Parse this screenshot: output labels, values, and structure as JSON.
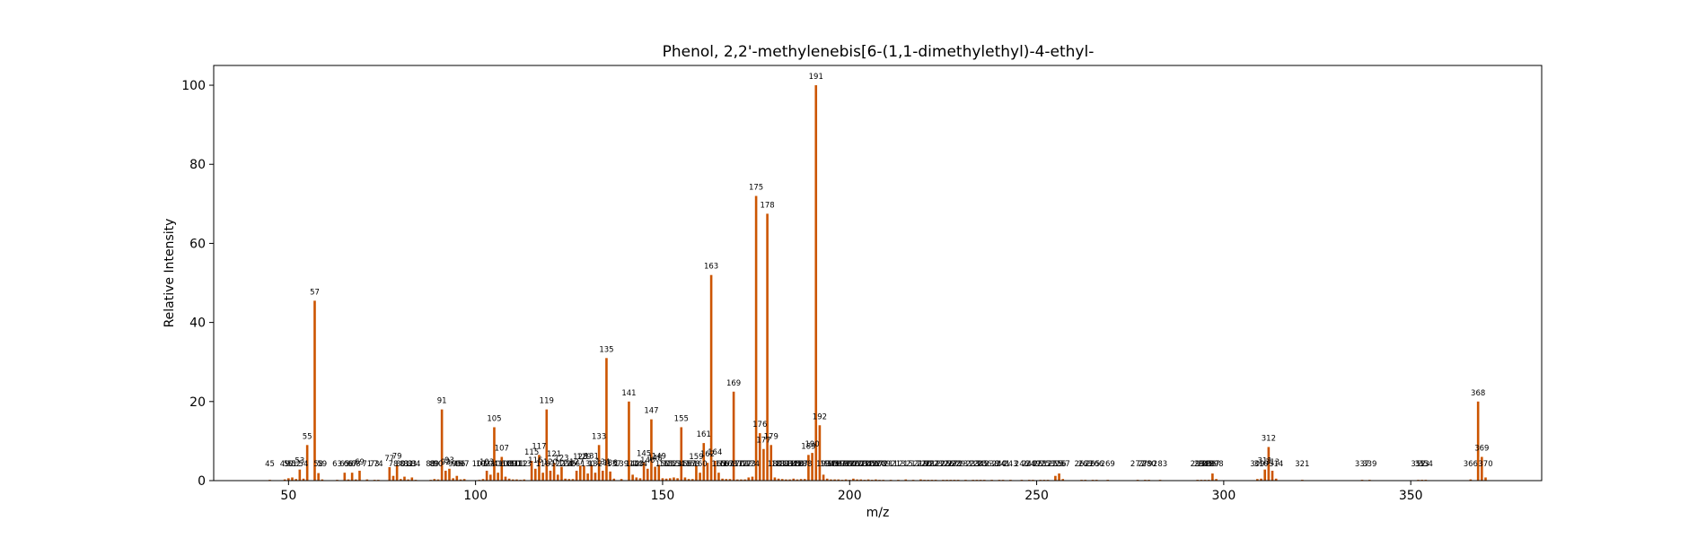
{
  "chart_data": {
    "type": "bar",
    "title": "Phenol, 2,2'-methylenebis[6-(1,1-dimethylethyl)-4-ethyl-",
    "xlabel": "m/z",
    "ylabel": "Relative Intensity",
    "xlim": [
      30,
      385
    ],
    "ylim": [
      0,
      105
    ],
    "xticks": [
      50,
      100,
      150,
      200,
      250,
      300,
      350
    ],
    "yticks": [
      0,
      20,
      40,
      60,
      80,
      100
    ],
    "grid": false,
    "bar_color": "#cc5500",
    "peaks": [
      {
        "x": 45,
        "y": 0.2
      },
      {
        "x": 49,
        "y": 0.3
      },
      {
        "x": 50,
        "y": 0.6
      },
      {
        "x": 51,
        "y": 0.8
      },
      {
        "x": 52,
        "y": 0.4
      },
      {
        "x": 53,
        "y": 2.8
      },
      {
        "x": 54,
        "y": 0.5
      },
      {
        "x": 55,
        "y": 9.0
      },
      {
        "x": 57,
        "y": 45.5
      },
      {
        "x": 58,
        "y": 1.9
      },
      {
        "x": 59,
        "y": 0.3
      },
      {
        "x": 63,
        "y": 0.2
      },
      {
        "x": 65,
        "y": 2.0
      },
      {
        "x": 66,
        "y": 0.3
      },
      {
        "x": 67,
        "y": 2.0
      },
      {
        "x": 68,
        "y": 0.3
      },
      {
        "x": 69,
        "y": 2.5
      },
      {
        "x": 71,
        "y": 0.3
      },
      {
        "x": 73,
        "y": 0.2
      },
      {
        "x": 74,
        "y": 0.2
      },
      {
        "x": 77,
        "y": 3.4
      },
      {
        "x": 78,
        "y": 1.2
      },
      {
        "x": 79,
        "y": 4.0
      },
      {
        "x": 80,
        "y": 0.4
      },
      {
        "x": 81,
        "y": 1.0
      },
      {
        "x": 82,
        "y": 0.3
      },
      {
        "x": 83,
        "y": 0.8
      },
      {
        "x": 84,
        "y": 0.2
      },
      {
        "x": 88,
        "y": 0.2
      },
      {
        "x": 89,
        "y": 0.4
      },
      {
        "x": 90,
        "y": 0.3
      },
      {
        "x": 91,
        "y": 18.0
      },
      {
        "x": 92,
        "y": 2.5
      },
      {
        "x": 93,
        "y": 3.0
      },
      {
        "x": 94,
        "y": 0.6
      },
      {
        "x": 95,
        "y": 1.2
      },
      {
        "x": 96,
        "y": 0.3
      },
      {
        "x": 97,
        "y": 0.4
      },
      {
        "x": 101,
        "y": 0.2
      },
      {
        "x": 102,
        "y": 0.4
      },
      {
        "x": 103,
        "y": 2.5
      },
      {
        "x": 104,
        "y": 1.5
      },
      {
        "x": 105,
        "y": 13.5
      },
      {
        "x": 106,
        "y": 2.0
      },
      {
        "x": 107,
        "y": 6.0
      },
      {
        "x": 108,
        "y": 1.0
      },
      {
        "x": 109,
        "y": 0.5
      },
      {
        "x": 110,
        "y": 0.3
      },
      {
        "x": 111,
        "y": 0.3
      },
      {
        "x": 112,
        "y": 0.2
      },
      {
        "x": 113,
        "y": 0.3
      },
      {
        "x": 115,
        "y": 5.0
      },
      {
        "x": 116,
        "y": 3.0
      },
      {
        "x": 117,
        "y": 6.5
      },
      {
        "x": 118,
        "y": 2.0
      },
      {
        "x": 119,
        "y": 18.0
      },
      {
        "x": 120,
        "y": 2.5
      },
      {
        "x": 121,
        "y": 4.5
      },
      {
        "x": 122,
        "y": 1.5
      },
      {
        "x": 123,
        "y": 3.5
      },
      {
        "x": 124,
        "y": 0.5
      },
      {
        "x": 125,
        "y": 0.4
      },
      {
        "x": 126,
        "y": 0.4
      },
      {
        "x": 127,
        "y": 2.5
      },
      {
        "x": 128,
        "y": 3.8
      },
      {
        "x": 129,
        "y": 3.8
      },
      {
        "x": 130,
        "y": 1.8
      },
      {
        "x": 131,
        "y": 4.0
      },
      {
        "x": 132,
        "y": 2.0
      },
      {
        "x": 133,
        "y": 9.0
      },
      {
        "x": 134,
        "y": 2.5
      },
      {
        "x": 135,
        "y": 31.0
      },
      {
        "x": 136,
        "y": 2.3
      },
      {
        "x": 137,
        "y": 0.5
      },
      {
        "x": 139,
        "y": 0.4
      },
      {
        "x": 141,
        "y": 20.0
      },
      {
        "x": 142,
        "y": 1.5
      },
      {
        "x": 143,
        "y": 0.8
      },
      {
        "x": 144,
        "y": 0.6
      },
      {
        "x": 145,
        "y": 4.6
      },
      {
        "x": 146,
        "y": 3.0
      },
      {
        "x": 147,
        "y": 15.5
      },
      {
        "x": 148,
        "y": 3.5
      },
      {
        "x": 149,
        "y": 4.0
      },
      {
        "x": 150,
        "y": 0.6
      },
      {
        "x": 151,
        "y": 0.5
      },
      {
        "x": 152,
        "y": 0.6
      },
      {
        "x": 153,
        "y": 0.8
      },
      {
        "x": 154,
        "y": 0.6
      },
      {
        "x": 155,
        "y": 13.5
      },
      {
        "x": 156,
        "y": 0.8
      },
      {
        "x": 157,
        "y": 0.4
      },
      {
        "x": 158,
        "y": 0.4
      },
      {
        "x": 159,
        "y": 3.8
      },
      {
        "x": 160,
        "y": 2.0
      },
      {
        "x": 161,
        "y": 9.5
      },
      {
        "x": 162,
        "y": 4.5
      },
      {
        "x": 163,
        "y": 52.0
      },
      {
        "x": 164,
        "y": 5.0
      },
      {
        "x": 165,
        "y": 2.0
      },
      {
        "x": 166,
        "y": 0.5
      },
      {
        "x": 167,
        "y": 0.4
      },
      {
        "x": 168,
        "y": 0.4
      },
      {
        "x": 169,
        "y": 22.5
      },
      {
        "x": 170,
        "y": 0.3
      },
      {
        "x": 171,
        "y": 0.3
      },
      {
        "x": 172,
        "y": 0.3
      },
      {
        "x": 173,
        "y": 0.8
      },
      {
        "x": 174,
        "y": 1.0
      },
      {
        "x": 175,
        "y": 72.0
      },
      {
        "x": 176,
        "y": 12.0
      },
      {
        "x": 177,
        "y": 8.0
      },
      {
        "x": 178,
        "y": 67.5
      },
      {
        "x": 179,
        "y": 9.0
      },
      {
        "x": 180,
        "y": 0.8
      },
      {
        "x": 181,
        "y": 0.5
      },
      {
        "x": 182,
        "y": 0.4
      },
      {
        "x": 183,
        "y": 0.3
      },
      {
        "x": 184,
        "y": 0.3
      },
      {
        "x": 185,
        "y": 0.5
      },
      {
        "x": 186,
        "y": 0.3
      },
      {
        "x": 187,
        "y": 0.4
      },
      {
        "x": 188,
        "y": 0.4
      },
      {
        "x": 189,
        "y": 6.5
      },
      {
        "x": 190,
        "y": 7.0
      },
      {
        "x": 191,
        "y": 100.0
      },
      {
        "x": 192,
        "y": 14.0
      },
      {
        "x": 193,
        "y": 1.5
      },
      {
        "x": 194,
        "y": 0.5
      },
      {
        "x": 195,
        "y": 0.3
      },
      {
        "x": 196,
        "y": 0.3
      },
      {
        "x": 197,
        "y": 0.3
      },
      {
        "x": 198,
        "y": 0.2
      },
      {
        "x": 199,
        "y": 0.3
      },
      {
        "x": 200,
        "y": 0.2
      },
      {
        "x": 201,
        "y": 0.5
      },
      {
        "x": 202,
        "y": 0.3
      },
      {
        "x": 203,
        "y": 0.3
      },
      {
        "x": 204,
        "y": 0.2
      },
      {
        "x": 205,
        "y": 0.3
      },
      {
        "x": 206,
        "y": 0.2
      },
      {
        "x": 207,
        "y": 0.3
      },
      {
        "x": 208,
        "y": 0.2
      },
      {
        "x": 209,
        "y": 0.2
      },
      {
        "x": 211,
        "y": 0.2
      },
      {
        "x": 213,
        "y": 0.2
      },
      {
        "x": 215,
        "y": 0.3
      },
      {
        "x": 217,
        "y": 0.2
      },
      {
        "x": 219,
        "y": 0.3
      },
      {
        "x": 220,
        "y": 0.2
      },
      {
        "x": 221,
        "y": 0.2
      },
      {
        "x": 222,
        "y": 0.2
      },
      {
        "x": 223,
        "y": 0.2
      },
      {
        "x": 225,
        "y": 0.2
      },
      {
        "x": 226,
        "y": 0.2
      },
      {
        "x": 227,
        "y": 0.2
      },
      {
        "x": 228,
        "y": 0.2
      },
      {
        "x": 229,
        "y": 0.2
      },
      {
        "x": 231,
        "y": 0.2
      },
      {
        "x": 233,
        "y": 0.2
      },
      {
        "x": 234,
        "y": 0.2
      },
      {
        "x": 235,
        "y": 0.2
      },
      {
        "x": 236,
        "y": 0.2
      },
      {
        "x": 238,
        "y": 0.2
      },
      {
        "x": 240,
        "y": 0.2
      },
      {
        "x": 241,
        "y": 0.2
      },
      {
        "x": 243,
        "y": 0.2
      },
      {
        "x": 246,
        "y": 0.2
      },
      {
        "x": 248,
        "y": 0.2
      },
      {
        "x": 249,
        "y": 0.2
      },
      {
        "x": 251,
        "y": 0.2
      },
      {
        "x": 252,
        "y": 0.2
      },
      {
        "x": 253,
        "y": 0.2
      },
      {
        "x": 255,
        "y": 1.2
      },
      {
        "x": 256,
        "y": 1.8
      },
      {
        "x": 257,
        "y": 0.4
      },
      {
        "x": 262,
        "y": 0.2
      },
      {
        "x": 263,
        "y": 0.2
      },
      {
        "x": 265,
        "y": 0.2
      },
      {
        "x": 266,
        "y": 0.2
      },
      {
        "x": 269,
        "y": 0.2
      },
      {
        "x": 277,
        "y": 0.2
      },
      {
        "x": 279,
        "y": 0.2
      },
      {
        "x": 280,
        "y": 0.2
      },
      {
        "x": 283,
        "y": 0.2
      },
      {
        "x": 293,
        "y": 0.2
      },
      {
        "x": 294,
        "y": 0.2
      },
      {
        "x": 295,
        "y": 0.2
      },
      {
        "x": 296,
        "y": 0.2
      },
      {
        "x": 297,
        "y": 1.8
      },
      {
        "x": 298,
        "y": 0.4
      },
      {
        "x": 309,
        "y": 0.4
      },
      {
        "x": 310,
        "y": 0.5
      },
      {
        "x": 311,
        "y": 2.8
      },
      {
        "x": 312,
        "y": 8.5
      },
      {
        "x": 313,
        "y": 2.5
      },
      {
        "x": 314,
        "y": 0.5
      },
      {
        "x": 321,
        "y": 0.2
      },
      {
        "x": 337,
        "y": 0.2
      },
      {
        "x": 339,
        "y": 0.2
      },
      {
        "x": 352,
        "y": 0.2
      },
      {
        "x": 353,
        "y": 0.2
      },
      {
        "x": 354,
        "y": 0.2
      },
      {
        "x": 366,
        "y": 0.3
      },
      {
        "x": 368,
        "y": 20.0
      },
      {
        "x": 369,
        "y": 6.0
      },
      {
        "x": 370,
        "y": 0.8
      }
    ]
  }
}
